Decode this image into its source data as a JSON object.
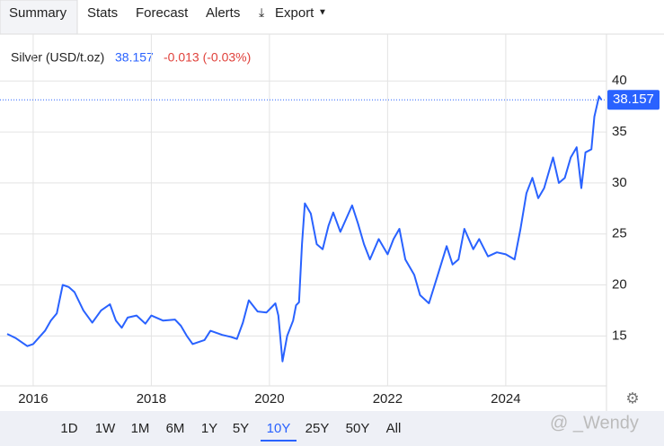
{
  "tabs": [
    "Summary",
    "Stats",
    "Forecast",
    "Alerts",
    "Export"
  ],
  "ranges": [
    "1D",
    "1W",
    "1M",
    "6M",
    "1Y",
    "5Y",
    "10Y",
    "25Y",
    "50Y",
    "All"
  ],
  "active_range": "10Y",
  "watermark": "@ _Wendy",
  "chart_data": {
    "type": "line",
    "title": "Silver (USD/t.oz)",
    "change_label": "-0.013 (-0.03%)",
    "x": [
      2015.56,
      2015.7,
      2015.9,
      2016.0,
      2016.2,
      2016.3,
      2016.4,
      2016.5,
      2016.6,
      2016.7,
      2016.85,
      2017.0,
      2017.15,
      2017.3,
      2017.4,
      2017.5,
      2017.6,
      2017.75,
      2017.9,
      2018.0,
      2018.2,
      2018.4,
      2018.5,
      2018.6,
      2018.7,
      2018.9,
      2019.0,
      2019.2,
      2019.35,
      2019.45,
      2019.55,
      2019.65,
      2019.8,
      2019.95,
      2020.1,
      2020.15,
      2020.22,
      2020.3,
      2020.4,
      2020.45,
      2020.5,
      2020.55,
      2020.6,
      2020.7,
      2020.8,
      2020.9,
      2021.0,
      2021.08,
      2021.2,
      2021.4,
      2021.5,
      2021.6,
      2021.7,
      2021.85,
      2022.0,
      2022.1,
      2022.2,
      2022.3,
      2022.45,
      2022.55,
      2022.7,
      2022.85,
      2023.0,
      2023.1,
      2023.2,
      2023.3,
      2023.45,
      2023.55,
      2023.7,
      2023.85,
      2024.0,
      2024.15,
      2024.25,
      2024.35,
      2024.45,
      2024.55,
      2024.65,
      2024.8,
      2024.9,
      2025.0,
      2025.1,
      2025.2,
      2025.28,
      2025.35,
      2025.45,
      2025.5,
      2025.58,
      2025.62
    ],
    "series": [
      {
        "name": "Silver",
        "color": "#2962ff",
        "values": [
          15.2,
          14.8,
          14.0,
          14.2,
          15.5,
          16.5,
          17.2,
          20.0,
          19.8,
          19.3,
          17.5,
          16.3,
          17.5,
          18.1,
          16.5,
          15.8,
          16.8,
          17.0,
          16.2,
          17.0,
          16.5,
          16.6,
          16.0,
          15.0,
          14.2,
          14.6,
          15.5,
          15.1,
          14.9,
          14.7,
          16.3,
          18.5,
          17.4,
          17.3,
          18.2,
          17.0,
          12.5,
          15.0,
          16.5,
          18.0,
          18.3,
          24.0,
          28.0,
          27.0,
          24.0,
          23.5,
          25.8,
          27.1,
          25.2,
          27.8,
          26.0,
          24.0,
          22.5,
          24.5,
          23.0,
          24.5,
          25.5,
          22.5,
          21.0,
          19.0,
          18.2,
          21.0,
          23.8,
          22.0,
          22.5,
          25.5,
          23.5,
          24.5,
          22.8,
          23.2,
          23.0,
          22.5,
          25.5,
          29.0,
          30.5,
          28.5,
          29.5,
          32.5,
          30.0,
          30.5,
          32.5,
          33.5,
          29.5,
          33.0,
          33.3,
          36.5,
          38.5,
          38.157
        ]
      }
    ],
    "xlim": [
      2015.56,
      2025.66
    ],
    "ylim": [
      10.1,
      44.6
    ],
    "xticks": [
      2016,
      2018,
      2020,
      2022,
      2024
    ],
    "yticks": [
      15,
      20,
      25,
      30,
      35,
      40
    ],
    "grid": true
  }
}
